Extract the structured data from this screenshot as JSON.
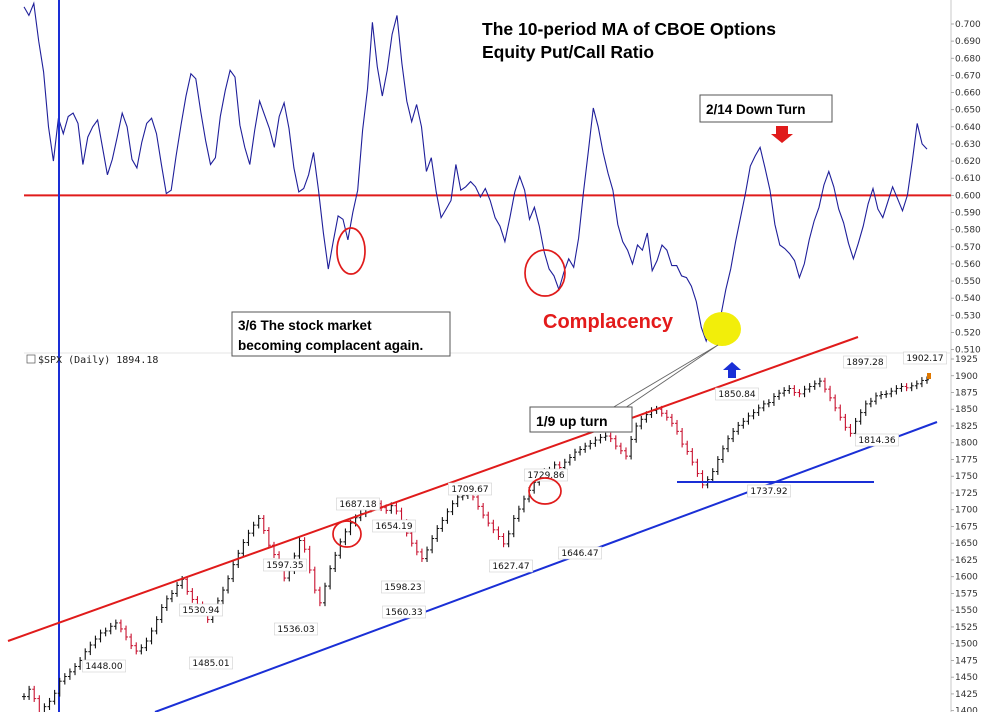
{
  "title_line1": "The 10-period MA of CBOE Options",
  "title_line2": "Equity Put/Call Ratio",
  "annotations": {
    "down_turn": "2/14 Down Turn",
    "complacent_line1": "3/6 The stock market",
    "complacent_line2": "becoming complacent again.",
    "complacency": "Complacency",
    "up_turn": "1/9 up turn"
  },
  "lower_panel_label": "$SPX (Daily) 1894.18",
  "colors": {
    "ratio_line": "#1f1f9a",
    "threshold_line": "#e01b1b",
    "upper_channel": "#e01b1b",
    "lower_channel": "#1a2fd6",
    "vertical_marker": "#1a2fd6",
    "circle": "#e01b1b",
    "highlight": "#f2ee0a",
    "bar_up": "#111111",
    "bar_down": "#c8102e"
  },
  "chart_data": [
    {
      "type": "line",
      "title": "The 10-period MA of CBOE Options Equity Put/Call Ratio",
      "ylim": [
        0.508,
        0.714
      ],
      "y_ticks": [
        "0.700",
        "0.690",
        "0.680",
        "0.670",
        "0.660",
        "0.650",
        "0.640",
        "0.630",
        "0.620",
        "0.610",
        "0.600",
        "0.590",
        "0.580",
        "0.570",
        "0.560",
        "0.550",
        "0.540",
        "0.530",
        "0.520",
        "0.510"
      ],
      "threshold": 0.6,
      "threshold_color": "#e01b1b",
      "values": [
        0.71,
        0.705,
        0.712,
        0.69,
        0.672,
        0.64,
        0.62,
        0.645,
        0.636,
        0.646,
        0.648,
        0.642,
        0.618,
        0.634,
        0.64,
        0.644,
        0.628,
        0.612,
        0.621,
        0.634,
        0.648,
        0.64,
        0.621,
        0.616,
        0.631,
        0.642,
        0.645,
        0.636,
        0.618,
        0.601,
        0.603,
        0.623,
        0.641,
        0.658,
        0.671,
        0.668,
        0.649,
        0.632,
        0.618,
        0.622,
        0.646,
        0.661,
        0.673,
        0.669,
        0.641,
        0.628,
        0.618,
        0.638,
        0.655,
        0.647,
        0.639,
        0.628,
        0.646,
        0.654,
        0.639,
        0.616,
        0.602,
        0.604,
        0.612,
        0.625,
        0.603,
        0.578,
        0.557,
        0.573,
        0.588,
        0.586,
        0.574,
        0.59,
        0.603,
        0.638,
        0.662,
        0.701,
        0.675,
        0.658,
        0.673,
        0.694,
        0.705,
        0.677,
        0.655,
        0.643,
        0.653,
        0.64,
        0.614,
        0.622,
        0.602,
        0.587,
        0.592,
        0.597,
        0.618,
        0.603,
        0.605,
        0.608,
        0.605,
        0.599,
        0.604,
        0.597,
        0.587,
        0.582,
        0.573,
        0.587,
        0.602,
        0.611,
        0.603,
        0.586,
        0.593,
        0.582,
        0.567,
        0.557,
        0.553,
        0.545,
        0.555,
        0.563,
        0.558,
        0.575,
        0.602,
        0.626,
        0.651,
        0.64,
        0.625,
        0.613,
        0.603,
        0.583,
        0.573,
        0.568,
        0.56,
        0.571,
        0.568,
        0.578,
        0.556,
        0.562,
        0.571,
        0.568,
        0.559,
        0.559,
        0.553,
        0.552,
        0.547,
        0.538,
        0.523,
        0.515,
        0.524,
        0.52,
        0.53,
        0.545,
        0.557,
        0.573,
        0.587,
        0.601,
        0.617,
        0.623,
        0.628,
        0.616,
        0.603,
        0.583,
        0.571,
        0.569,
        0.566,
        0.562,
        0.552,
        0.56,
        0.574,
        0.585,
        0.593,
        0.606,
        0.614,
        0.605,
        0.592,
        0.584,
        0.572,
        0.563,
        0.572,
        0.582,
        0.595,
        0.604,
        0.592,
        0.587,
        0.596,
        0.605,
        0.598,
        0.591,
        0.6,
        0.62,
        0.642,
        0.63,
        0.627
      ],
      "annotation_labels": [
        "2/14 Down Turn",
        "3/6 The stock market becoming complacent again.",
        "Complacency",
        "1/9 up turn"
      ]
    },
    {
      "type": "line",
      "title": "$SPX (Daily) 1894.18",
      "ylim": [
        1398,
        1928
      ],
      "y_ticks": [
        "1925",
        "1900",
        "1875",
        "1850",
        "1825",
        "1800",
        "1775",
        "1750",
        "1725",
        "1700",
        "1675",
        "1650",
        "1625",
        "1600",
        "1575",
        "1550",
        "1525",
        "1500",
        "1475",
        "1450",
        "1425",
        "1400"
      ],
      "values": [
        1421,
        1432,
        1418,
        1397,
        1406,
        1414,
        1426,
        1444,
        1451,
        1458,
        1466,
        1475,
        1488,
        1498,
        1507,
        1516,
        1519,
        1526,
        1531,
        1522,
        1510,
        1497,
        1489,
        1494,
        1504,
        1519,
        1536,
        1554,
        1567,
        1575,
        1587,
        1596,
        1578,
        1566,
        1558,
        1550,
        1536,
        1548,
        1564,
        1580,
        1597,
        1618,
        1635,
        1651,
        1665,
        1677,
        1687,
        1669,
        1647,
        1633,
        1617,
        1598,
        1609,
        1631,
        1654,
        1641,
        1610,
        1580,
        1561,
        1586,
        1612,
        1632,
        1652,
        1667,
        1680,
        1688,
        1694,
        1701,
        1705,
        1709,
        1703,
        1699,
        1706,
        1698,
        1681,
        1665,
        1650,
        1637,
        1627,
        1640,
        1657,
        1672,
        1684,
        1697,
        1709,
        1719,
        1721,
        1726,
        1719,
        1705,
        1692,
        1680,
        1670,
        1660,
        1649,
        1664,
        1687,
        1701,
        1716,
        1729,
        1741,
        1750,
        1757,
        1759,
        1767,
        1763,
        1771,
        1778,
        1786,
        1790,
        1795,
        1799,
        1804,
        1808,
        1810,
        1806,
        1795,
        1788,
        1780,
        1805,
        1825,
        1835,
        1842,
        1848,
        1850,
        1844,
        1838,
        1829,
        1817,
        1798,
        1787,
        1771,
        1754,
        1737,
        1745,
        1757,
        1775,
        1791,
        1806,
        1817,
        1826,
        1832,
        1840,
        1845,
        1852,
        1858,
        1860,
        1869,
        1874,
        1878,
        1881,
        1875,
        1873,
        1880,
        1884,
        1888,
        1892,
        1880,
        1867,
        1852,
        1838,
        1823,
        1814,
        1832,
        1845,
        1858,
        1862,
        1870,
        1872,
        1873,
        1877,
        1881,
        1884,
        1882,
        1885,
        1888,
        1893,
        1894
      ],
      "price_labels": [
        "1448.00",
        "1530.94",
        "1485.01",
        "1597.35",
        "1536.03",
        "1687.18",
        "1654.19",
        "1598.23",
        "1560.33",
        "1709.67",
        "1627.47",
        "1729.86",
        "1646.47",
        "1850.84",
        "1737.92",
        "1897.28",
        "1814.36",
        "1902.17"
      ]
    }
  ]
}
